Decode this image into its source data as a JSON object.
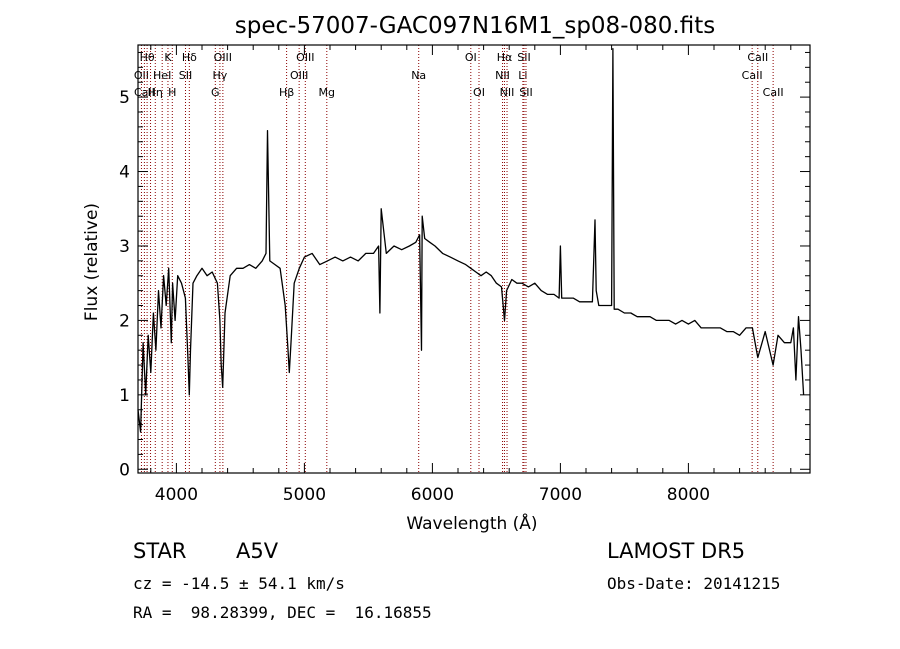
{
  "chart_data": {
    "type": "line",
    "title": "spec-57007-GAC097N16M1_sp08-080.fits",
    "xlabel": "Wavelength (Å)",
    "ylabel": "Flux (relative)",
    "xlim": [
      3700,
      8950
    ],
    "ylim": [
      -0.05,
      5.7
    ],
    "xticks": [
      4000,
      5000,
      6000,
      7000,
      8000
    ],
    "yticks": [
      0,
      1,
      2,
      3,
      4,
      5
    ],
    "grid": false,
    "series": [
      {
        "x": [
          3700,
          3720,
          3740,
          3760,
          3780,
          3800,
          3820,
          3840,
          3860,
          3880,
          3900,
          3920,
          3940,
          3960,
          3970,
          3990,
          4010,
          4040,
          4070,
          4090,
          4101,
          4110,
          4130,
          4160,
          4200,
          4240,
          4280,
          4320,
          4340,
          4350,
          4362,
          4380,
          4420,
          4470,
          4520,
          4570,
          4620,
          4670,
          4700,
          4712,
          4730,
          4770,
          4810,
          4850,
          4870,
          4882,
          4895,
          4920,
          4960,
          5000,
          5060,
          5120,
          5180,
          5240,
          5300,
          5360,
          5420,
          5480,
          5540,
          5580,
          5590,
          5600,
          5640,
          5700,
          5760,
          5820,
          5870,
          5900,
          5910,
          5915,
          5920,
          5940,
          5980,
          6020,
          6080,
          6140,
          6200,
          6260,
          6300,
          6340,
          6380,
          6420,
          6460,
          6500,
          6540,
          6563,
          6580,
          6620,
          6660,
          6700,
          6750,
          6800,
          6850,
          6900,
          6950,
          6990,
          7000,
          7010,
          7050,
          7100,
          7150,
          7200,
          7250,
          7270,
          7280,
          7300,
          7350,
          7400,
          7410,
          7420,
          7450,
          7500,
          7550,
          7600,
          7650,
          7700,
          7750,
          7800,
          7850,
          7900,
          7950,
          8000,
          8050,
          8100,
          8150,
          8200,
          8250,
          8300,
          8350,
          8400,
          8450,
          8500,
          8542,
          8600,
          8662,
          8700,
          8750,
          8800,
          8820,
          8840,
          8860,
          8880,
          8900
        ],
        "y": [
          0.8,
          0.5,
          1.7,
          1.0,
          1.8,
          1.3,
          2.1,
          1.6,
          2.4,
          1.9,
          2.6,
          2.2,
          2.7,
          1.7,
          2.5,
          2.0,
          2.6,
          2.5,
          2.3,
          1.5,
          1.0,
          1.6,
          2.5,
          2.6,
          2.7,
          2.6,
          2.65,
          2.5,
          2.0,
          1.4,
          1.1,
          2.1,
          2.6,
          2.7,
          2.7,
          2.75,
          2.7,
          2.8,
          2.9,
          4.55,
          2.8,
          2.75,
          2.7,
          2.2,
          1.65,
          1.3,
          1.7,
          2.5,
          2.7,
          2.85,
          2.9,
          2.75,
          2.8,
          2.85,
          2.8,
          2.85,
          2.8,
          2.9,
          2.9,
          3.0,
          2.1,
          3.5,
          2.9,
          3.0,
          2.95,
          3.0,
          3.05,
          3.15,
          2.1,
          1.6,
          3.4,
          3.1,
          3.05,
          3.0,
          2.9,
          2.85,
          2.8,
          2.75,
          2.7,
          2.65,
          2.6,
          2.65,
          2.6,
          2.5,
          2.45,
          2.0,
          2.4,
          2.55,
          2.5,
          2.5,
          2.45,
          2.5,
          2.4,
          2.35,
          2.35,
          2.3,
          3.0,
          2.3,
          2.3,
          2.3,
          2.25,
          2.25,
          2.25,
          3.35,
          2.4,
          2.2,
          2.2,
          2.2,
          5.65,
          2.15,
          2.15,
          2.1,
          2.1,
          2.05,
          2.05,
          2.05,
          2.0,
          2.0,
          2.0,
          1.95,
          2.0,
          1.95,
          2.0,
          1.9,
          1.9,
          1.9,
          1.9,
          1.85,
          1.85,
          1.8,
          1.9,
          1.9,
          1.5,
          1.85,
          1.4,
          1.8,
          1.7,
          1.7,
          1.9,
          1.2,
          2.05,
          1.6,
          1.0
        ]
      }
    ],
    "spectral_lines": [
      {
        "x": 3727,
        "label": "OII",
        "row": 2
      },
      {
        "x": 3750,
        "label": "CaII",
        "row": 3
      },
      {
        "x": 3771,
        "label": "Hθ",
        "row": 1
      },
      {
        "x": 3798,
        "label": "",
        "row": 0
      },
      {
        "x": 3835,
        "label": "Hη",
        "row": 3
      },
      {
        "x": 3889,
        "label": "HeI",
        "row": 2
      },
      {
        "x": 3934,
        "label": "K",
        "row": 1
      },
      {
        "x": 3968,
        "label": "H",
        "row": 3
      },
      {
        "x": 4071,
        "label": "SII",
        "row": 2
      },
      {
        "x": 4101,
        "label": "Hδ",
        "row": 1
      },
      {
        "x": 4304,
        "label": "G",
        "row": 3
      },
      {
        "x": 4340,
        "label": "Hγ",
        "row": 2
      },
      {
        "x": 4363,
        "label": "OIII",
        "row": 1
      },
      {
        "x": 4861,
        "label": "Hβ",
        "row": 3
      },
      {
        "x": 4959,
        "label": "OIII",
        "row": 2
      },
      {
        "x": 5007,
        "label": "OIII",
        "row": 1
      },
      {
        "x": 5175,
        "label": "Mg",
        "row": 3
      },
      {
        "x": 5893,
        "label": "Na",
        "row": 2
      },
      {
        "x": 6300,
        "label": "OI",
        "row": 1
      },
      {
        "x": 6364,
        "label": "OI",
        "row": 3
      },
      {
        "x": 6548,
        "label": "NII",
        "row": 2
      },
      {
        "x": 6563,
        "label": "Hα",
        "row": 1
      },
      {
        "x": 6583,
        "label": "NII",
        "row": 3
      },
      {
        "x": 6707,
        "label": "Li",
        "row": 2
      },
      {
        "x": 6716,
        "label": "SII",
        "row": 1
      },
      {
        "x": 6731,
        "label": "SII",
        "row": 3
      },
      {
        "x": 8498,
        "label": "CaII",
        "row": 2
      },
      {
        "x": 8542,
        "label": "CaII",
        "row": 1
      },
      {
        "x": 8662,
        "label": "CaII",
        "row": 3
      }
    ]
  },
  "info": {
    "class_label": "STAR",
    "subclass": "A5V",
    "survey": "LAMOST DR5",
    "cz": "cz = -14.5 ± 54.1 km/s",
    "obs_date": "Obs-Date: 20141215",
    "coords": "RA =  98.28399, DEC =  16.16855"
  },
  "colors": {
    "spectrum": "#000000",
    "line_markers": "#8b0000"
  }
}
